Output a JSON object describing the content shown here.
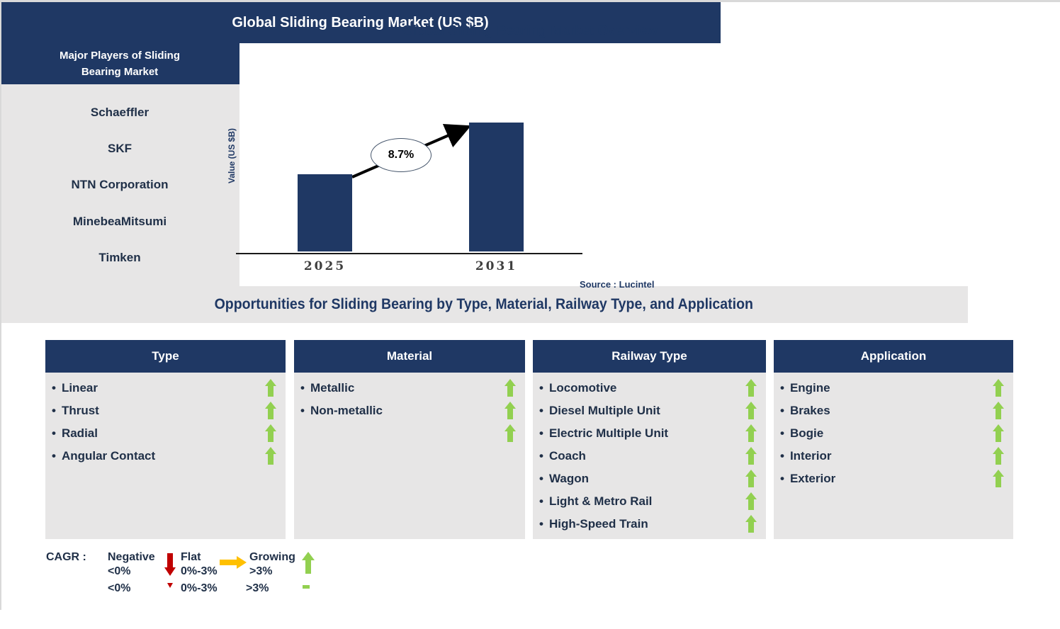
{
  "page": {
    "title": "Global Sliding Bearing Market Overview"
  },
  "chart_panel": {
    "header": "Global Sliding Bearing Market (US $B)",
    "source": "Source : Lucintel"
  },
  "chart_data": {
    "type": "bar",
    "title": "Global Sliding Bearing Market (US $B)",
    "ylabel": "Value (US $B)",
    "xlabel": "",
    "categories": [
      "2025",
      "2031"
    ],
    "values_relative": [
      0.6,
      1.0
    ],
    "annotation_text": "8.7%",
    "bar_color": "#1F3864",
    "grid": false,
    "legend_position": "none"
  },
  "major_players": {
    "header": "Major Players of Sliding Bearing Market",
    "companies": [
      "Schaeffler",
      "SKF",
      "NTN Corporation",
      "MinebeaMitsumi",
      "Timken"
    ]
  },
  "opportunities": {
    "banner": "Opportunities for Sliding Bearing by Type, Material, Railway Type, and Application",
    "bullet": "•",
    "columns": [
      {
        "title": "Type",
        "items": [
          {
            "label": "Linear"
          },
          {
            "label": "Thrust"
          },
          {
            "label": "Radial"
          },
          {
            "label": "Angular Contact"
          }
        ]
      },
      {
        "title": "Material",
        "items": [
          {
            "label": "Metallic"
          },
          {
            "label": "Non-metallic"
          },
          {
            "label": ""
          }
        ]
      },
      {
        "title": "Railway Type",
        "items": [
          {
            "label": "Locomotive"
          },
          {
            "label": "Diesel Multiple Unit"
          },
          {
            "label": "Electric Multiple Unit"
          },
          {
            "label": "Coach"
          },
          {
            "label": "Wagon"
          },
          {
            "label": "Light & Metro Rail"
          },
          {
            "label": "High-Speed Train"
          }
        ]
      },
      {
        "title": "Application",
        "items": [
          {
            "label": "Engine"
          },
          {
            "label": "Brakes"
          },
          {
            "label": "Bogie"
          },
          {
            "label": "Interior"
          },
          {
            "label": "Exterior"
          }
        ]
      }
    ]
  },
  "legend": {
    "prefix": "CAGR :",
    "entries": [
      {
        "name": "Negative",
        "range": "<0%",
        "icon": "down-arrow",
        "color": "#C00000"
      },
      {
        "name": "Flat",
        "range": "0%-3%",
        "icon": "right-arrow",
        "color": "#FFC000"
      },
      {
        "name": "Growing",
        "range": ">3%",
        "icon": "up-arrow",
        "color": "#92D050"
      }
    ],
    "clipped_row": {
      "ranges": [
        "<0%",
        "0%-3%",
        ">3%"
      ]
    }
  },
  "colors": {
    "navy": "#1F3864",
    "panel-gray": "#E7E6E6",
    "green": "#92D050",
    "red": "#C00000",
    "orange": "#FFC000",
    "item-text": "#203048",
    "axis-text": "#3F3F3F"
  }
}
